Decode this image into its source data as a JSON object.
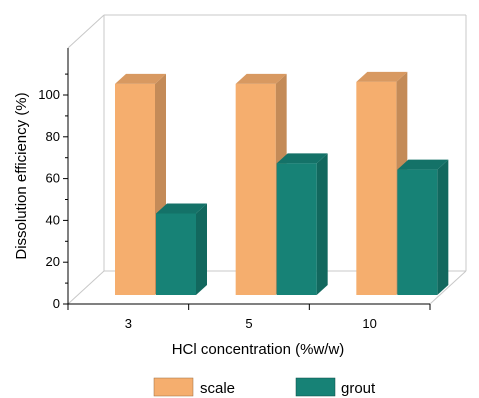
{
  "chart_data": {
    "type": "bar",
    "categories": [
      "3",
      "5",
      "10"
    ],
    "series": [
      {
        "name": "scale",
        "values": [
          101,
          101,
          102
        ],
        "color": "#F5AE6E"
      },
      {
        "name": "grout",
        "values": [
          39,
          63,
          60
        ],
        "color": "#178276"
      }
    ],
    "xlabel": "HCl concentration (%w/w)",
    "ylabel": "Dissolution efficiency (%)",
    "ylim": [
      0,
      110
    ],
    "yticks": [
      "0",
      "20",
      "40",
      "60",
      "80",
      "100"
    ],
    "grid": false,
    "legend": "bottom"
  }
}
